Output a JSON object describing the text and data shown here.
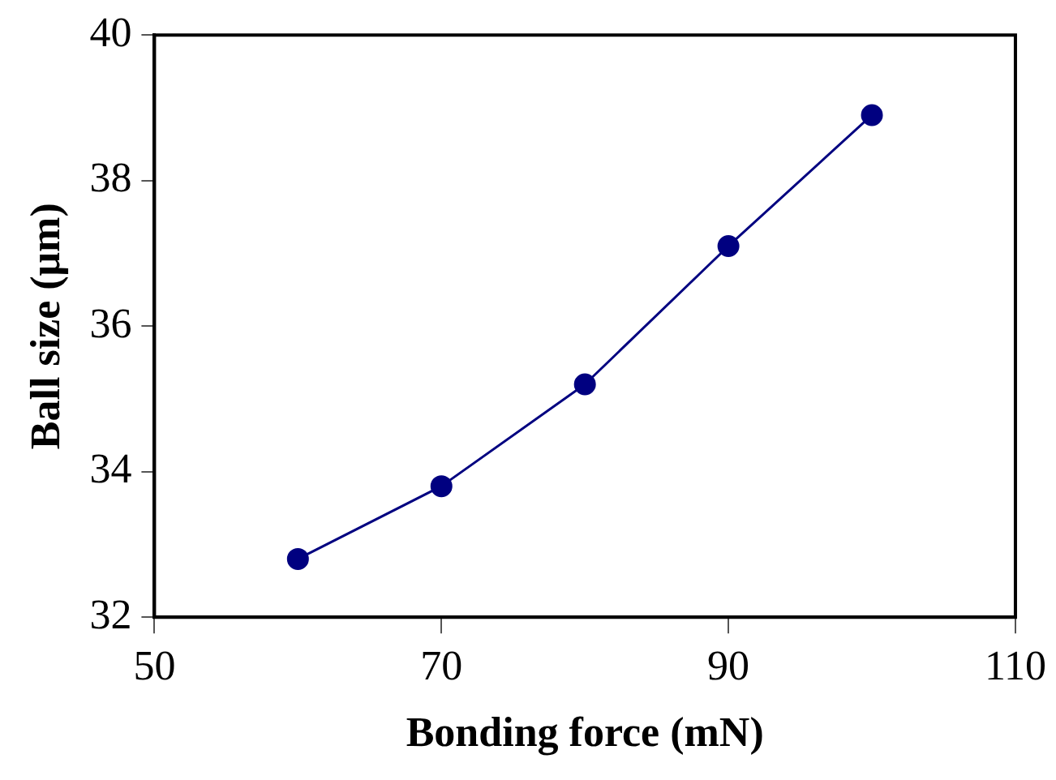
{
  "chart_data": {
    "type": "line",
    "xlabel": "Bonding force (mN)",
    "ylabel": "Ball size (μm)",
    "x": [
      60,
      70,
      80,
      90,
      100
    ],
    "series": [
      {
        "color": "#000080",
        "values": [
          32.8,
          33.8,
          35.2,
          37.1,
          38.9
        ]
      }
    ],
    "xlim": [
      50,
      110
    ],
    "xticks": [
      50,
      70,
      90,
      110
    ],
    "ylim": [
      32,
      40
    ],
    "yticks": [
      32,
      34,
      36,
      38,
      40
    ],
    "grid": false,
    "legend": false,
    "marker": "circle",
    "line_style": "solid"
  }
}
